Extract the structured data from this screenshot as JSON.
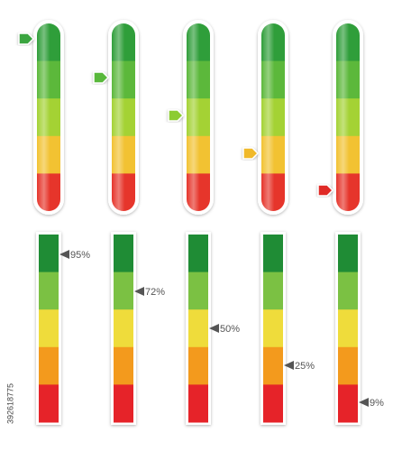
{
  "bottom_gauges": [
    {
      "label": "95%"
    },
    {
      "label": "72%"
    },
    {
      "label": "50%"
    },
    {
      "label": "25%"
    },
    {
      "label": "9%"
    }
  ],
  "stock_id": "392618775"
}
